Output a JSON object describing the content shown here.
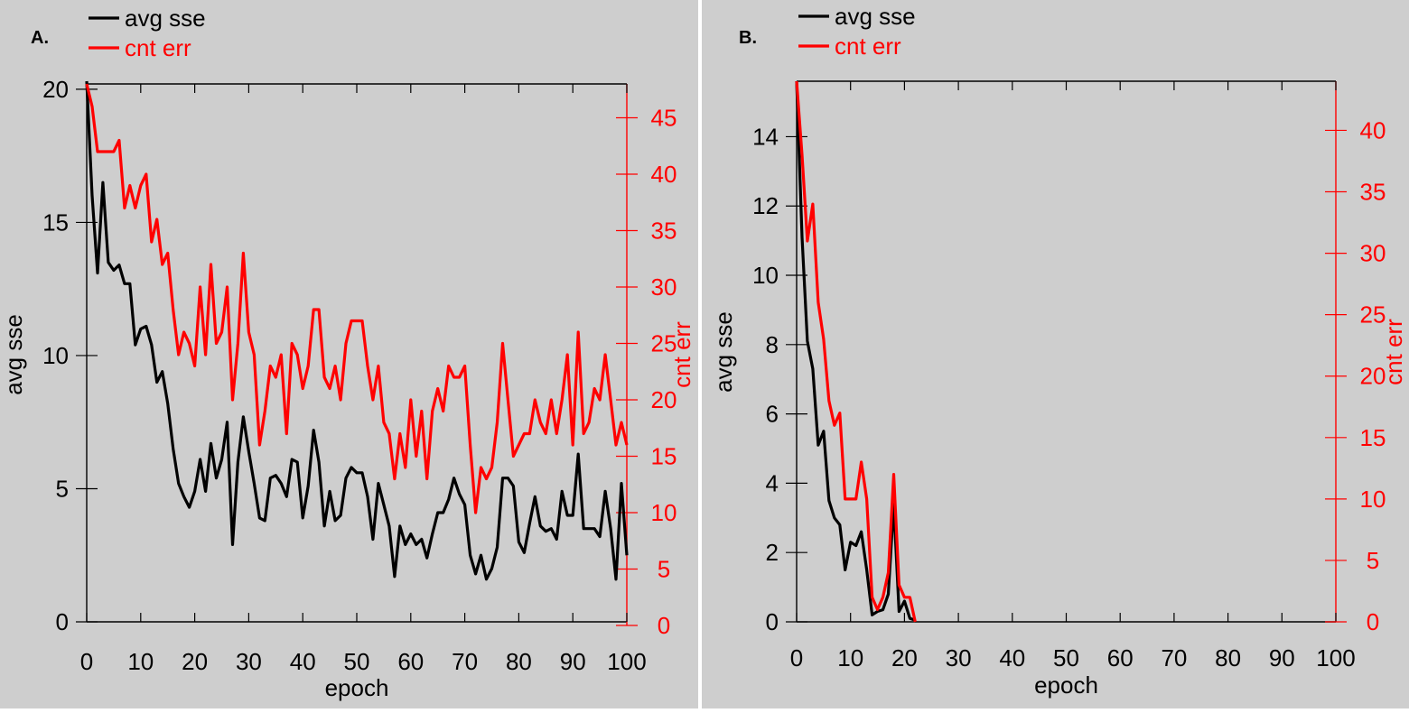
{
  "colors": {
    "panel_bg": "#cecece",
    "sse_color": "#000000",
    "err_color": "#ff0000"
  },
  "chart_data": [
    {
      "type": "line",
      "panel_label": "A.",
      "xlabel": "epoch",
      "ylabel_left": "avg sse",
      "ylabel_right": "cnt err",
      "xlim": [
        0,
        100
      ],
      "ylim_left": [
        0,
        20.2
      ],
      "ylim_right": [
        0,
        48
      ],
      "x_ticks": [
        0,
        10,
        20,
        30,
        40,
        50,
        60,
        70,
        80,
        90,
        100
      ],
      "y_left_ticks": [
        0,
        5,
        10,
        15,
        20
      ],
      "y_right_ticks": [
        0,
        5,
        10,
        15,
        20,
        25,
        30,
        35,
        40,
        45
      ],
      "legend": [
        "avg sse",
        "cnt err"
      ],
      "legend_position": "top-left",
      "series": [
        {
          "name": "avg sse",
          "axis": "left",
          "x": [
            0,
            1,
            2,
            3,
            4,
            5,
            6,
            7,
            8,
            9,
            10,
            11,
            12,
            13,
            14,
            15,
            16,
            17,
            18,
            19,
            20,
            21,
            22,
            23,
            24,
            25,
            26,
            27,
            28,
            29,
            30,
            31,
            32,
            33,
            34,
            35,
            36,
            37,
            38,
            39,
            40,
            41,
            42,
            43,
            44,
            45,
            46,
            47,
            48,
            49,
            50,
            51,
            52,
            53,
            54,
            55,
            56,
            57,
            58,
            59,
            60,
            61,
            62,
            63,
            64,
            65,
            66,
            67,
            68,
            69,
            70,
            71,
            72,
            73,
            74,
            75,
            76,
            77,
            78,
            79,
            80,
            81,
            82,
            83,
            84,
            85,
            86,
            87,
            88,
            89,
            90,
            91,
            92,
            93,
            94,
            95,
            96,
            97,
            98,
            99,
            100
          ],
          "values": [
            20.3,
            16.0,
            13.1,
            16.5,
            13.5,
            13.2,
            13.4,
            12.7,
            12.7,
            10.4,
            11.0,
            11.1,
            10.4,
            9.0,
            9.4,
            8.2,
            6.5,
            5.2,
            4.7,
            4.3,
            4.9,
            6.1,
            4.9,
            6.7,
            5.4,
            6.1,
            7.5,
            2.9,
            6.0,
            7.7,
            6.4,
            5.2,
            3.9,
            3.8,
            5.4,
            5.5,
            5.2,
            4.7,
            6.1,
            6.0,
            3.9,
            5.1,
            7.2,
            6.0,
            3.6,
            4.9,
            3.8,
            4.0,
            5.4,
            5.8,
            5.6,
            5.6,
            4.7,
            3.1,
            5.2,
            4.4,
            3.6,
            1.7,
            3.6,
            2.9,
            3.3,
            2.9,
            3.1,
            2.4,
            3.3,
            4.1,
            4.1,
            4.6,
            5.4,
            4.8,
            4.4,
            2.5,
            1.8,
            2.5,
            1.6,
            2.0,
            2.8,
            5.4,
            5.4,
            5.1,
            3.0,
            2.6,
            3.7,
            4.7,
            3.6,
            3.4,
            3.5,
            3.1,
            4.9,
            4.0,
            4.0,
            6.3,
            3.5,
            3.5,
            3.5,
            3.2,
            4.9,
            3.5,
            1.6,
            5.2,
            2.5
          ]
        },
        {
          "name": "cnt err",
          "axis": "right",
          "x": [
            0,
            1,
            2,
            3,
            4,
            5,
            6,
            7,
            8,
            9,
            10,
            11,
            12,
            13,
            14,
            15,
            16,
            17,
            18,
            19,
            20,
            21,
            22,
            23,
            24,
            25,
            26,
            27,
            28,
            29,
            30,
            31,
            32,
            33,
            34,
            35,
            36,
            37,
            38,
            39,
            40,
            41,
            42,
            43,
            44,
            45,
            46,
            47,
            48,
            49,
            50,
            51,
            52,
            53,
            54,
            55,
            56,
            57,
            58,
            59,
            60,
            61,
            62,
            63,
            64,
            65,
            66,
            67,
            68,
            69,
            70,
            71,
            72,
            73,
            74,
            75,
            76,
            77,
            78,
            79,
            80,
            81,
            82,
            83,
            84,
            85,
            86,
            87,
            88,
            89,
            90,
            91,
            92,
            93,
            94,
            95,
            96,
            97,
            98,
            99,
            100
          ],
          "values": [
            48,
            46,
            42,
            42,
            42,
            42,
            43,
            37,
            39,
            37,
            39,
            40,
            34,
            36,
            32,
            33,
            28,
            24,
            26,
            25,
            23,
            30,
            24,
            32,
            25,
            26,
            30,
            20,
            25,
            33,
            26,
            24,
            16,
            19,
            23,
            22,
            24,
            17,
            25,
            24,
            21,
            23,
            28,
            28,
            22,
            21,
            23,
            20,
            25,
            27,
            27,
            27,
            23,
            20,
            23,
            18,
            17,
            13,
            17,
            14,
            20,
            15,
            19,
            13,
            19,
            21,
            19,
            23,
            22,
            22,
            23,
            16,
            10,
            14,
            13,
            14,
            18,
            25,
            20,
            15,
            16,
            17,
            17,
            20,
            18,
            17,
            20,
            17,
            20,
            24,
            16,
            26,
            17,
            18,
            21,
            20,
            24,
            20,
            16,
            18,
            16
          ]
        }
      ]
    },
    {
      "type": "line",
      "panel_label": "B.",
      "xlabel": "epoch",
      "ylabel_left": "avg sse",
      "ylabel_right": "cnt err",
      "xlim": [
        0,
        100
      ],
      "ylim_left": [
        0,
        15.6
      ],
      "ylim_right": [
        0,
        44
      ],
      "x_ticks": [
        0,
        10,
        20,
        30,
        40,
        50,
        60,
        70,
        80,
        90,
        100
      ],
      "y_left_ticks": [
        0,
        2,
        4,
        6,
        8,
        10,
        12,
        14
      ],
      "y_right_ticks": [
        0,
        5,
        10,
        15,
        20,
        25,
        30,
        35,
        40
      ],
      "legend": [
        "avg sse",
        "cnt err"
      ],
      "legend_position": "top-left",
      "series": [
        {
          "name": "avg sse",
          "axis": "left",
          "x": [
            0,
            1,
            2,
            3,
            4,
            5,
            6,
            7,
            8,
            9,
            10,
            11,
            12,
            13,
            14,
            15,
            16,
            17,
            18,
            19,
            20,
            21,
            22
          ],
          "values": [
            15.6,
            11.1,
            8.1,
            7.3,
            5.1,
            5.5,
            3.5,
            3.0,
            2.8,
            1.5,
            2.3,
            2.2,
            2.6,
            1.5,
            0.2,
            0.3,
            0.35,
            0.8,
            3.4,
            0.3,
            0.6,
            0.1,
            0.05
          ]
        },
        {
          "name": "cnt err",
          "axis": "right",
          "x": [
            0,
            1,
            2,
            3,
            4,
            5,
            6,
            7,
            8,
            9,
            10,
            11,
            12,
            13,
            14,
            15,
            16,
            17,
            18,
            19,
            20,
            21,
            22
          ],
          "values": [
            44,
            38,
            31,
            34,
            26,
            23,
            18,
            16,
            17,
            10,
            10,
            10,
            13,
            10,
            2,
            1,
            2,
            4,
            12,
            3,
            2,
            2,
            0
          ]
        }
      ]
    }
  ]
}
